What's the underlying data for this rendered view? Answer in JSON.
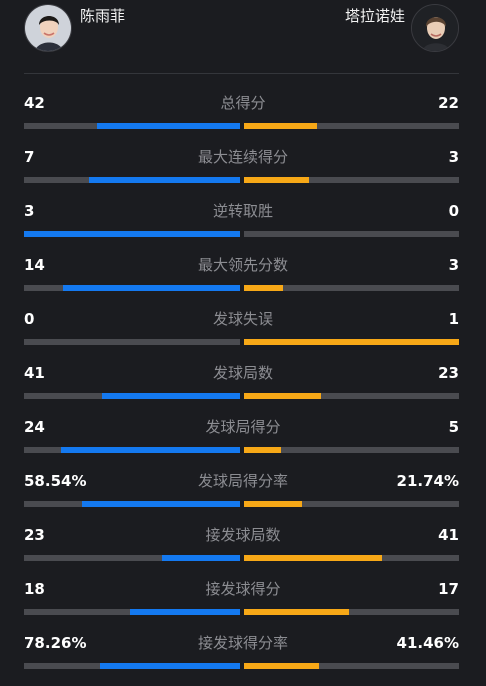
{
  "players": {
    "left": {
      "name": "陈雨菲"
    },
    "right": {
      "name": "塔拉诺娃"
    }
  },
  "colors": {
    "left_bar": "#1479f0",
    "right_bar": "#f7a817",
    "track": "#4a4b50",
    "background": "#1b1c20"
  },
  "stats": [
    {
      "label": "总得分",
      "left": "42",
      "right": "22",
      "left_share": 0.66,
      "right_share": 0.34
    },
    {
      "label": "最大连续得分",
      "left": "7",
      "right": "3",
      "left_share": 0.7,
      "right_share": 0.3
    },
    {
      "label": "逆转取胜",
      "left": "3",
      "right": "0",
      "left_share": 1.0,
      "right_share": 0.0
    },
    {
      "label": "最大领先分数",
      "left": "14",
      "right": "3",
      "left_share": 0.82,
      "right_share": 0.18
    },
    {
      "label": "发球失误",
      "left": "0",
      "right": "1",
      "left_share": 0.0,
      "right_share": 1.0
    },
    {
      "label": "发球局数",
      "left": "41",
      "right": "23",
      "left_share": 0.64,
      "right_share": 0.36
    },
    {
      "label": "发球局得分",
      "left": "24",
      "right": "5",
      "left_share": 0.83,
      "right_share": 0.17
    },
    {
      "label": "发球局得分率",
      "left": "58.54%",
      "right": "21.74%",
      "left_share": 0.73,
      "right_share": 0.27
    },
    {
      "label": "接发球局数",
      "left": "23",
      "right": "41",
      "left_share": 0.36,
      "right_share": 0.64
    },
    {
      "label": "接发球得分",
      "left": "18",
      "right": "17",
      "left_share": 0.51,
      "right_share": 0.49
    },
    {
      "label": "接发球得分率",
      "left": "78.26%",
      "right": "41.46%",
      "left_share": 0.65,
      "right_share": 0.35
    }
  ]
}
